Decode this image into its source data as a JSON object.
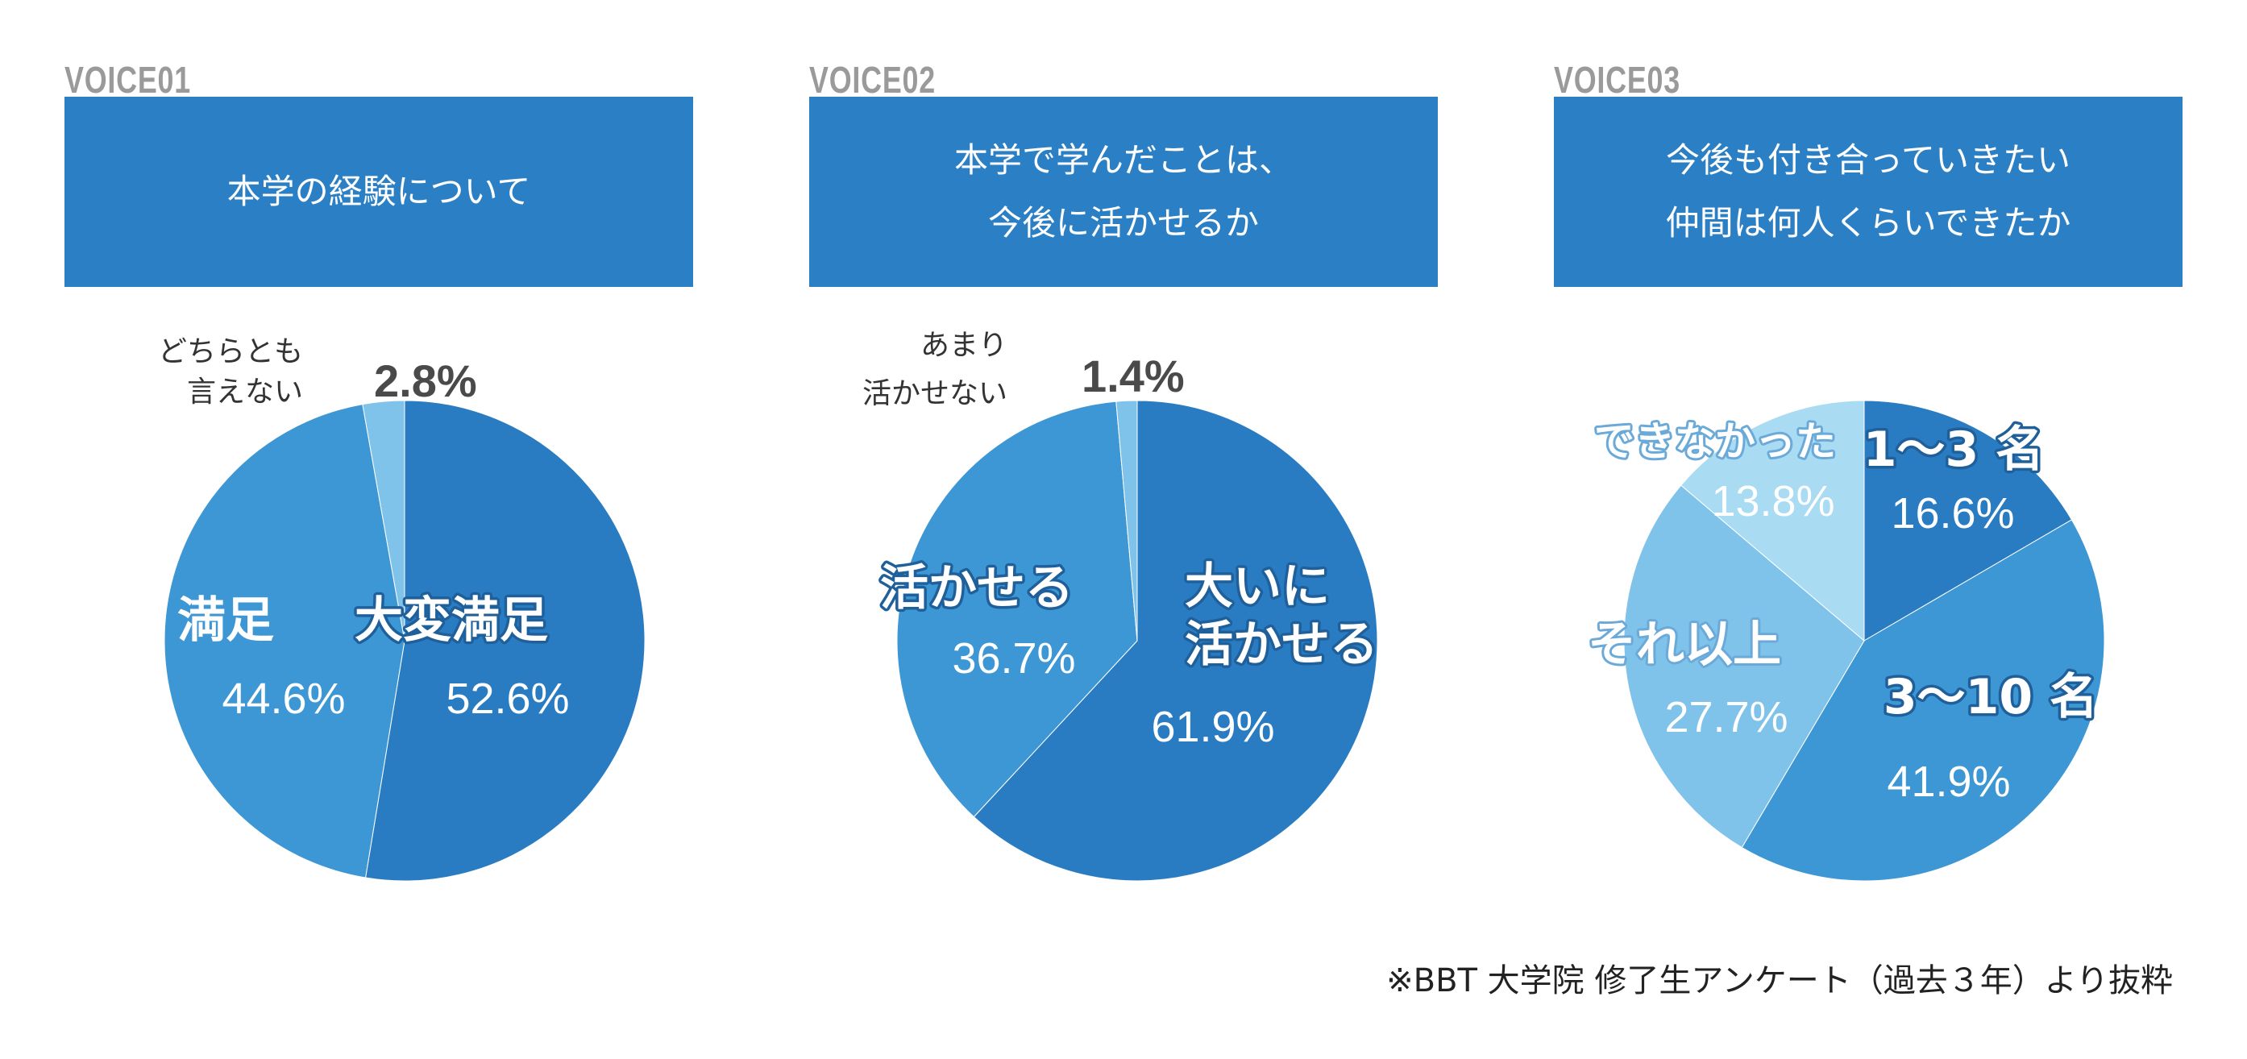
{
  "panels": [
    {
      "tag": "VOICE01",
      "title_lines": [
        "本学の経験について"
      ]
    },
    {
      "tag": "VOICE02",
      "title_lines": [
        "本学で学んだことは、",
        "今後に活かせるか"
      ]
    },
    {
      "tag": "VOICE03",
      "title_lines": [
        "今後も付き合っていきたい",
        "仲間は何人くらいできたか"
      ]
    }
  ],
  "footnote": "※BBT 大学院 修了生アンケート（過去３年）より抜粋",
  "chart_data": [
    {
      "type": "pie",
      "title": "本学の経験について",
      "slices": [
        {
          "label": "大変満足",
          "value": 52.6,
          "pct_label": "52.6%",
          "color": "#2a7cc2"
        },
        {
          "label": "満足",
          "value": 44.6,
          "pct_label": "44.6%",
          "color": "#3d97d4"
        },
        {
          "label": "どちらとも言えない",
          "label_lines": [
            "どちらとも",
            "言えない"
          ],
          "value": 2.8,
          "pct_label": "2.8%",
          "color": "#7fc2ea"
        }
      ]
    },
    {
      "type": "pie",
      "title": "本学で学んだことは、今後に活かせるか",
      "slices": [
        {
          "label": "大いに活かせる",
          "label_lines": [
            "大いに",
            "活かせる"
          ],
          "value": 61.9,
          "pct_label": "61.9%",
          "color": "#2a7cc2"
        },
        {
          "label": "活かせる",
          "value": 36.7,
          "pct_label": "36.7%",
          "color": "#3d97d4"
        },
        {
          "label": "あまり活かせない",
          "label_lines": [
            "あまり",
            "活かせない"
          ],
          "value": 1.4,
          "pct_label": "1.4%",
          "color": "#7fc2ea"
        }
      ]
    },
    {
      "type": "pie",
      "title": "今後も付き合っていきたい仲間は何人くらいできたか",
      "slices": [
        {
          "label": "1～3 名",
          "value": 16.6,
          "pct_label": "16.6%",
          "color": "#2a7cc2"
        },
        {
          "label": "3～10 名",
          "value": 41.9,
          "pct_label": "41.9%",
          "color": "#3d97d4"
        },
        {
          "label": "それ以上",
          "value": 27.7,
          "pct_label": "27.7%",
          "color": "#7fc2ea"
        },
        {
          "label": "できなかった",
          "value": 13.8,
          "pct_label": "13.8%",
          "color": "#a9dbf3"
        }
      ]
    }
  ]
}
